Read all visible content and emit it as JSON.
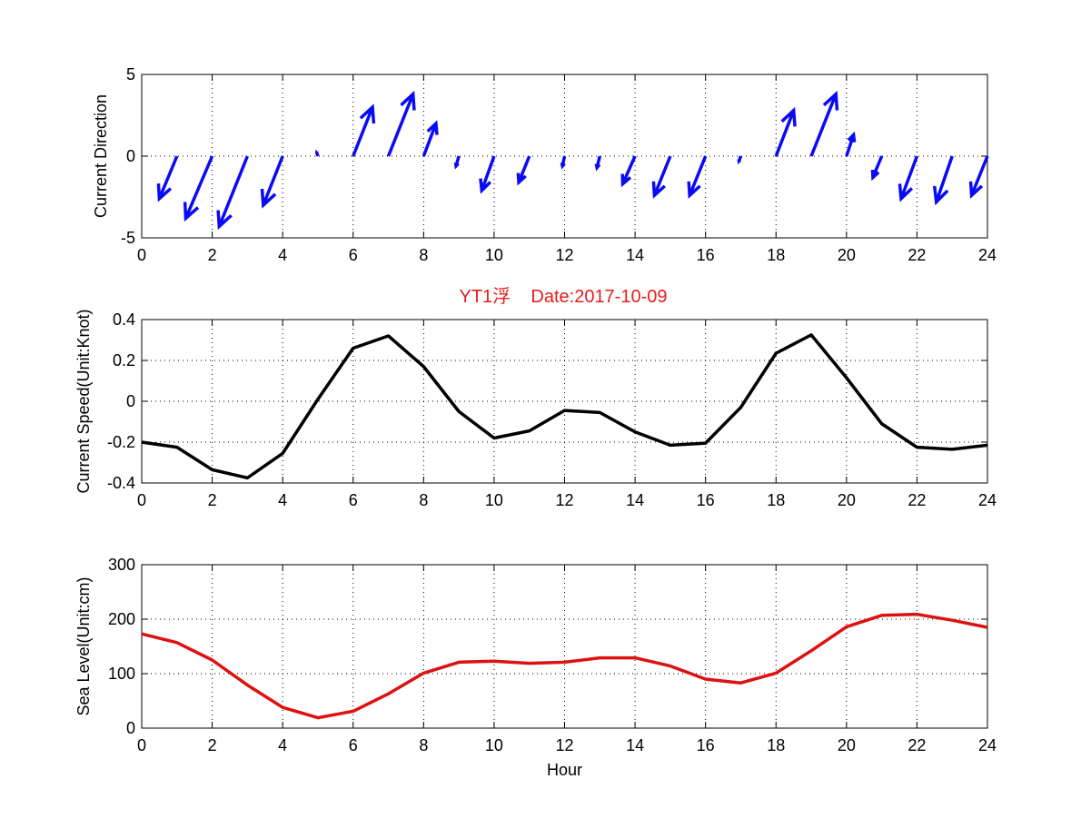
{
  "figure_title": "YT1浮    Date:2017-10-09",
  "colors": {
    "title": "#e81b1b",
    "arrows": "#0a0af5",
    "speed_line": "#000000",
    "sea_level_line": "#dd1111"
  },
  "chart_data": [
    {
      "type": "quiver",
      "title": "",
      "xlabel": "",
      "ylabel": "Current Direction",
      "xlim": [
        0,
        24
      ],
      "ylim": [
        -5,
        5
      ],
      "grid": true,
      "xticks": [
        "0",
        "2",
        "4",
        "6",
        "8",
        "10",
        "12",
        "14",
        "16",
        "18",
        "20",
        "22",
        "24"
      ],
      "yticks": [
        "-5",
        "0",
        "5"
      ],
      "series": [
        {
          "hour": [
            1,
            2,
            3,
            4,
            5,
            6,
            7,
            8,
            9,
            10,
            11,
            12,
            13,
            14,
            15,
            16,
            17,
            18,
            19,
            20,
            21,
            22,
            23,
            24
          ],
          "u": [
            -0.5,
            -0.75,
            -0.8,
            -0.55,
            -0.03,
            0.55,
            0.7,
            0.35,
            -0.08,
            -0.35,
            -0.3,
            -0.06,
            -0.08,
            -0.35,
            -0.45,
            -0.45,
            -0.05,
            0.5,
            0.7,
            0.2,
            -0.25,
            -0.45,
            -0.45,
            -0.45
          ],
          "v": [
            -2.6,
            -3.8,
            -4.3,
            -3.0,
            0.2,
            3.0,
            3.8,
            2.0,
            -0.6,
            -2.1,
            -1.6,
            -0.6,
            -0.7,
            -1.7,
            -2.4,
            -2.4,
            -0.3,
            2.8,
            3.8,
            1.3,
            -1.3,
            -2.6,
            -2.8,
            -2.4
          ]
        }
      ]
    },
    {
      "type": "line",
      "title": "YT1浮    Date:2017-10-09",
      "xlabel": "",
      "ylabel": "Current Speed(Unit:Knot)",
      "xlim": [
        0,
        24
      ],
      "ylim": [
        -0.4,
        0.4
      ],
      "grid": true,
      "xticks": [
        "0",
        "2",
        "4",
        "6",
        "8",
        "10",
        "12",
        "14",
        "16",
        "18",
        "20",
        "22",
        "24"
      ],
      "yticks": [
        "-0.4",
        "-0.2",
        "0",
        "0.2",
        "0.4"
      ],
      "x": [
        0,
        1,
        2,
        3,
        4,
        5,
        6,
        7,
        8,
        9,
        10,
        11,
        12,
        13,
        14,
        15,
        16,
        17,
        18,
        19,
        20,
        21,
        22,
        23,
        24
      ],
      "series": [
        {
          "values": [
            -0.2,
            -0.225,
            -0.335,
            -0.375,
            -0.255,
            0.01,
            0.26,
            0.32,
            0.17,
            -0.05,
            -0.18,
            -0.145,
            -0.045,
            -0.055,
            -0.15,
            -0.215,
            -0.205,
            -0.03,
            0.235,
            0.325,
            0.115,
            -0.11,
            -0.225,
            -0.235,
            -0.215
          ]
        }
      ]
    },
    {
      "type": "line",
      "title": "",
      "xlabel": "Hour",
      "ylabel": "Sea Level(Unit:cm)",
      "xlim": [
        0,
        24
      ],
      "ylim": [
        0,
        300
      ],
      "grid": true,
      "xticks": [
        "0",
        "2",
        "4",
        "6",
        "8",
        "10",
        "12",
        "14",
        "16",
        "18",
        "20",
        "22",
        "24"
      ],
      "yticks": [
        "0",
        "100",
        "200",
        "300"
      ],
      "x": [
        0,
        1,
        2,
        3,
        4,
        5,
        6,
        7,
        8,
        9,
        10,
        11,
        12,
        13,
        14,
        15,
        16,
        17,
        18,
        19,
        20,
        21,
        22,
        23,
        24
      ],
      "series": [
        {
          "values": [
            173,
            157,
            125,
            79,
            38,
            19,
            31,
            63,
            101,
            121,
            123,
            119,
            121,
            129,
            129,
            114,
            90,
            83,
            101,
            142,
            186,
            207,
            209,
            198,
            185
          ]
        }
      ]
    }
  ]
}
